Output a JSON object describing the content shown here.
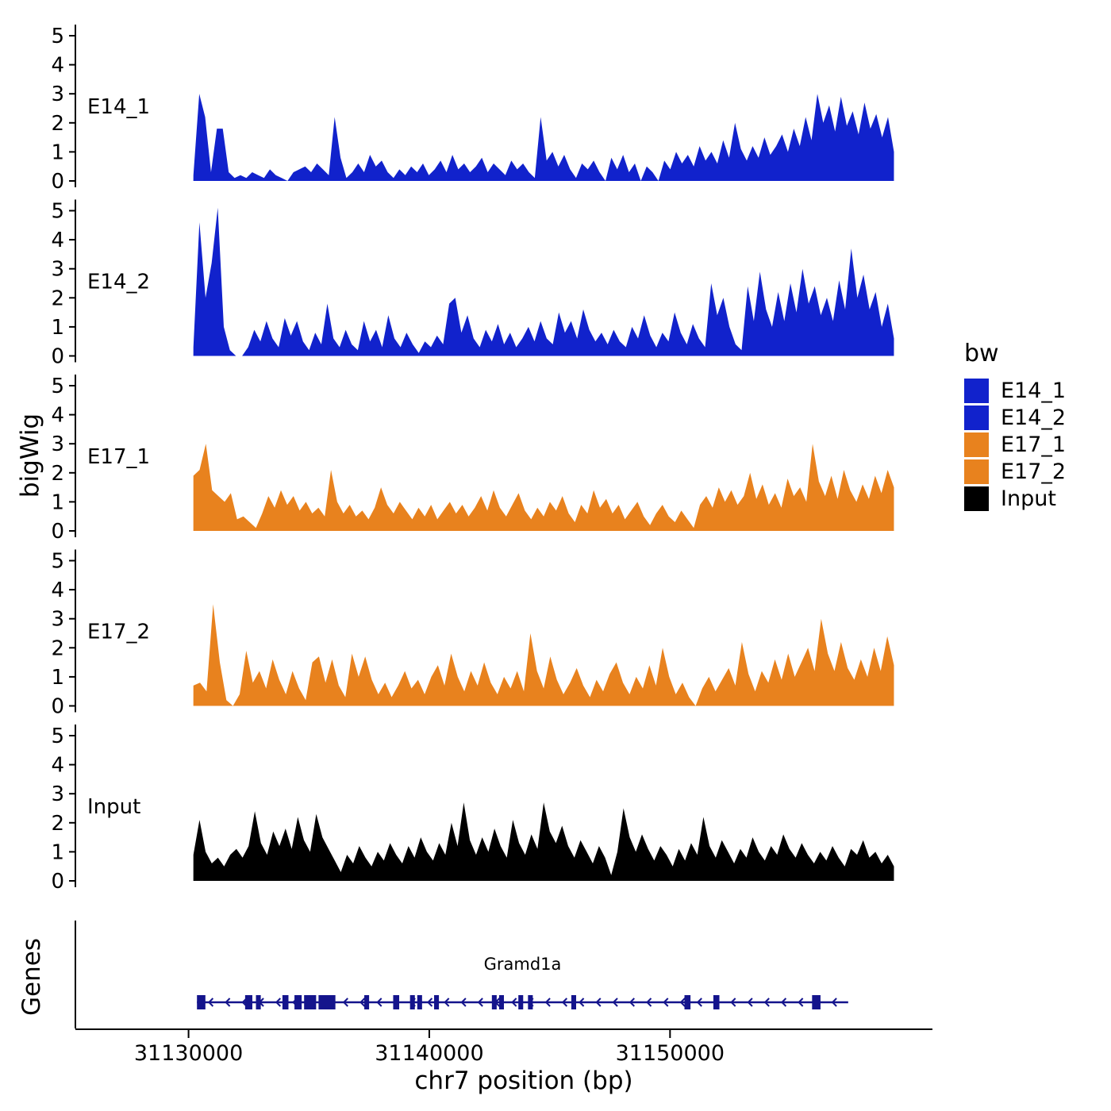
{
  "figure": {
    "ylabel": "bigWig",
    "genes_panel_label": "Genes",
    "xlabel": "chr7 position (bp)"
  },
  "legend": {
    "title": "bw",
    "entries": [
      {
        "label": "E14_1",
        "color": "#1122CC"
      },
      {
        "label": "E14_2",
        "color": "#1122CC"
      },
      {
        "label": "E17_1",
        "color": "#E8821E"
      },
      {
        "label": "E17_2",
        "color": "#E8821E"
      },
      {
        "label": "Input",
        "color": "#000000"
      }
    ]
  },
  "chart_data": {
    "type": "area",
    "title": "",
    "xlabel": "chr7 position (bp)",
    "ylabel": "bigWig",
    "x_domain": [
      31125300,
      31160900
    ],
    "x_ticks": [
      31130000,
      31140000,
      31150000
    ],
    "ylim": [
      0,
      5
    ],
    "y_ticks": [
      0,
      1,
      2,
      3,
      4,
      5
    ],
    "tracks": [
      {
        "name": "E14_1",
        "color": "#1122CC",
        "x_start": 31130200,
        "x_end": 31159300,
        "values": [
          0.2,
          3.0,
          2.2,
          0.3,
          1.8,
          1.8,
          0.3,
          0.1,
          0.2,
          0.1,
          0.3,
          0.2,
          0.1,
          0.4,
          0.2,
          0.1,
          0,
          0.3,
          0.4,
          0.5,
          0.3,
          0.6,
          0.4,
          0.2,
          2.2,
          0.8,
          0.1,
          0.3,
          0.6,
          0.3,
          0.9,
          0.5,
          0.7,
          0.3,
          0.1,
          0.4,
          0.2,
          0.5,
          0.3,
          0.6,
          0.2,
          0.4,
          0.7,
          0.3,
          0.9,
          0.4,
          0.6,
          0.3,
          0.5,
          0.8,
          0.3,
          0.6,
          0.4,
          0.2,
          0.7,
          0.4,
          0.6,
          0.3,
          0.1,
          2.2,
          0.7,
          1.0,
          0.5,
          0.9,
          0.4,
          0.1,
          0.6,
          0.4,
          0.7,
          0.3,
          0,
          0.8,
          0.4,
          0.9,
          0.3,
          0.6,
          0,
          0.5,
          0.3,
          0,
          0.7,
          0.4,
          1.0,
          0.6,
          0.9,
          0.5,
          1.2,
          0.7,
          1.0,
          0.6,
          1.4,
          0.8,
          2.0,
          1.1,
          0.7,
          1.2,
          0.8,
          1.5,
          0.9,
          1.2,
          1.6,
          1.0,
          1.8,
          1.2,
          2.2,
          1.4,
          3.0,
          2.0,
          2.6,
          1.7,
          2.9,
          1.9,
          2.4,
          1.6,
          2.7,
          1.8,
          2.3,
          1.5,
          2.2,
          1.0
        ]
      },
      {
        "name": "E14_2",
        "color": "#1122CC",
        "x_start": 31130200,
        "x_end": 31159300,
        "values": [
          0.3,
          4.6,
          2.0,
          3.2,
          5.1,
          1.0,
          0.2,
          0,
          0,
          0.3,
          0.9,
          0.5,
          1.2,
          0.6,
          0.3,
          1.3,
          0.7,
          1.2,
          0.5,
          0.2,
          0.8,
          0.4,
          1.8,
          0.6,
          0.3,
          0.9,
          0.4,
          0.2,
          1.2,
          0.5,
          0.9,
          0.3,
          1.4,
          0.6,
          0.3,
          0.8,
          0.4,
          0.1,
          0.5,
          0.3,
          0.7,
          0.4,
          1.8,
          2.0,
          0.8,
          1.4,
          0.6,
          0.3,
          0.9,
          0.5,
          1.1,
          0.4,
          0.8,
          0.3,
          0.6,
          1.0,
          0.5,
          1.2,
          0.6,
          0.4,
          1.5,
          0.8,
          1.2,
          0.6,
          1.6,
          0.9,
          0.5,
          0.8,
          0.4,
          0.9,
          0.5,
          0.3,
          1.0,
          0.6,
          1.4,
          0.7,
          0.3,
          0.8,
          0.5,
          1.5,
          0.8,
          0.4,
          1.1,
          0.6,
          0.3,
          2.5,
          1.4,
          2.0,
          1.0,
          0.4,
          0.2,
          2.4,
          1.2,
          2.9,
          1.6,
          1.0,
          2.2,
          1.2,
          2.5,
          1.5,
          3.0,
          1.8,
          2.4,
          1.4,
          2.0,
          1.2,
          2.6,
          1.6,
          3.7,
          2.0,
          2.8,
          1.6,
          2.2,
          1.0,
          1.8,
          0.6
        ]
      },
      {
        "name": "E17_1",
        "color": "#E8821E",
        "x_start": 31130200,
        "x_end": 31159300,
        "values": [
          1.9,
          2.1,
          3.0,
          1.4,
          1.2,
          1.0,
          1.3,
          0.4,
          0.5,
          0.3,
          0.1,
          0.6,
          1.2,
          0.8,
          1.4,
          0.9,
          1.2,
          0.7,
          1.0,
          0.6,
          0.8,
          0.5,
          2.1,
          1.0,
          0.6,
          0.9,
          0.5,
          0.7,
          0.4,
          0.8,
          1.5,
          0.9,
          0.6,
          1.0,
          0.7,
          0.4,
          0.8,
          0.5,
          0.9,
          0.4,
          0.7,
          1.0,
          0.6,
          0.9,
          0.5,
          0.8,
          1.2,
          0.7,
          1.4,
          0.8,
          0.5,
          0.9,
          1.3,
          0.7,
          0.4,
          0.8,
          0.5,
          1.0,
          0.7,
          1.2,
          0.6,
          0.3,
          0.9,
          0.6,
          1.4,
          0.8,
          1.1,
          0.6,
          0.9,
          0.4,
          0.7,
          1.0,
          0.5,
          0.2,
          0.6,
          0.9,
          0.5,
          0.3,
          0.7,
          0.4,
          0.1,
          0.9,
          1.2,
          0.8,
          1.5,
          1.0,
          1.4,
          0.9,
          1.2,
          2.0,
          1.1,
          1.6,
          0.9,
          1.3,
          0.8,
          1.8,
          1.2,
          1.5,
          1.0,
          3.0,
          1.7,
          1.2,
          1.9,
          1.1,
          2.1,
          1.4,
          1.0,
          1.6,
          1.1,
          1.9,
          1.3,
          2.1,
          1.5
        ]
      },
      {
        "name": "E17_2",
        "color": "#E8821E",
        "x_start": 31130200,
        "x_end": 31159300,
        "values": [
          0.7,
          0.8,
          0.5,
          3.5,
          1.5,
          0.2,
          0,
          0.4,
          1.9,
          0.8,
          1.2,
          0.6,
          1.6,
          0.9,
          0.4,
          1.2,
          0.6,
          0.2,
          1.5,
          1.7,
          0.8,
          1.6,
          0.7,
          0.3,
          1.8,
          1.0,
          1.7,
          0.9,
          0.4,
          0.8,
          0.3,
          0.7,
          1.2,
          0.6,
          0.9,
          0.4,
          1.0,
          1.4,
          0.7,
          1.8,
          1.0,
          0.5,
          1.2,
          0.7,
          1.5,
          0.8,
          0.4,
          1.0,
          0.6,
          1.2,
          0.5,
          2.5,
          1.2,
          0.6,
          1.7,
          0.9,
          0.4,
          0.8,
          1.3,
          0.7,
          0.3,
          0.9,
          0.5,
          1.1,
          1.5,
          0.8,
          0.4,
          1.0,
          0.6,
          1.4,
          0.7,
          2.0,
          1.0,
          0.4,
          0.8,
          0.3,
          0,
          0.6,
          1.0,
          0.5,
          0.9,
          1.3,
          0.7,
          2.2,
          1.1,
          0.5,
          1.2,
          0.8,
          1.6,
          0.9,
          1.8,
          1.0,
          1.5,
          2.0,
          1.2,
          3.0,
          1.8,
          1.2,
          2.2,
          1.3,
          0.9,
          1.6,
          1.0,
          2.0,
          1.2,
          2.4,
          1.4
        ]
      },
      {
        "name": "Input",
        "color": "#000000",
        "x_start": 31130200,
        "x_end": 31159300,
        "values": [
          0.9,
          2.1,
          1.0,
          0.6,
          0.8,
          0.5,
          0.9,
          1.1,
          0.8,
          1.2,
          2.4,
          1.3,
          0.9,
          1.7,
          1.2,
          1.8,
          1.1,
          2.2,
          1.4,
          1.0,
          2.3,
          1.5,
          1.1,
          0.7,
          0.3,
          0.9,
          0.6,
          1.2,
          0.8,
          0.5,
          1.0,
          0.7,
          1.3,
          0.9,
          0.6,
          1.2,
          0.8,
          1.5,
          1.0,
          0.7,
          1.3,
          0.9,
          2.0,
          1.2,
          2.7,
          1.4,
          0.9,
          1.5,
          1.0,
          1.8,
          1.2,
          0.8,
          2.1,
          1.3,
          0.9,
          1.6,
          1.1,
          2.7,
          1.7,
          1.3,
          1.9,
          1.2,
          0.8,
          1.4,
          1.0,
          0.6,
          1.2,
          0.8,
          0.2,
          1.0,
          2.5,
          1.5,
          1.0,
          1.6,
          1.1,
          0.7,
          1.2,
          0.9,
          0.5,
          1.1,
          0.7,
          1.3,
          0.9,
          2.2,
          1.2,
          0.8,
          1.4,
          1.0,
          0.6,
          1.1,
          0.8,
          1.5,
          1.0,
          0.7,
          1.2,
          0.9,
          1.6,
          1.1,
          0.8,
          1.3,
          0.9,
          0.6,
          1.0,
          0.7,
          1.2,
          0.8,
          0.5,
          1.1,
          0.9,
          1.4,
          0.8,
          1.0,
          0.6,
          0.9,
          0.5
        ]
      }
    ],
    "gene": {
      "name": "Gramd1a",
      "chrom": "chr7",
      "strand": "-",
      "start": 31130350,
      "end": 31157400,
      "color": "#14148C",
      "exons": [
        [
          31130350,
          31130700
        ],
        [
          31132350,
          31132650
        ],
        [
          31132800,
          31133000
        ],
        [
          31133900,
          31134150
        ],
        [
          31134400,
          31134700
        ],
        [
          31134800,
          31135300
        ],
        [
          31135400,
          31136100
        ],
        [
          31137300,
          31137500
        ],
        [
          31138500,
          31138750
        ],
        [
          31139200,
          31139400
        ],
        [
          31139500,
          31139700
        ],
        [
          31140200,
          31140400
        ],
        [
          31142600,
          31142800
        ],
        [
          31142900,
          31143100
        ],
        [
          31143700,
          31143900
        ],
        [
          31144100,
          31144300
        ],
        [
          31145900,
          31146100
        ],
        [
          31150600,
          31150850
        ],
        [
          31151800,
          31152050
        ],
        [
          31155900,
          31156250
        ]
      ]
    }
  }
}
